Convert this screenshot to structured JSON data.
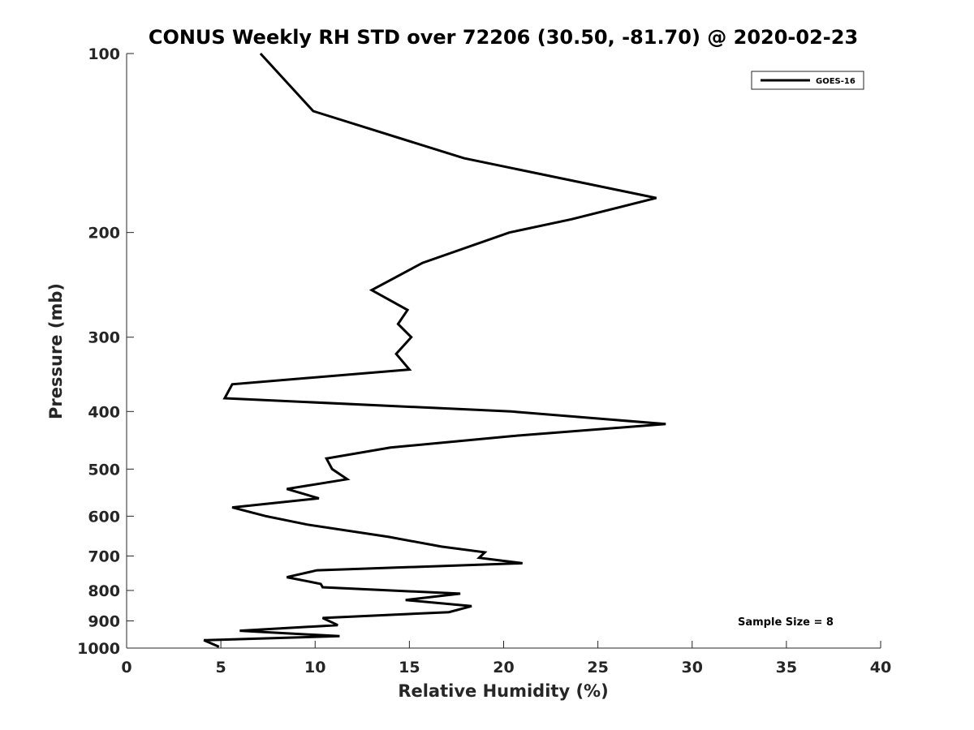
{
  "chart_data": {
    "type": "line",
    "title": "CONUS Weekly RH STD over 72206 (30.50, -81.70) @ 2020-02-23",
    "xlabel": "Relative Humidity (%)",
    "ylabel": "Pressure (mb)",
    "xlim": [
      0,
      40
    ],
    "ylim": [
      100,
      1000
    ],
    "y_scale": "log",
    "y_reversed": true,
    "x_ticks": [
      0,
      5,
      10,
      15,
      20,
      25,
      30,
      35,
      40
    ],
    "y_ticks": [
      100,
      200,
      300,
      400,
      500,
      600,
      700,
      800,
      900,
      1000
    ],
    "grid": false,
    "legend_position": "top-right",
    "series": [
      {
        "name": "GOES-16",
        "color": "#000000",
        "x": [
          7.1,
          9.9,
          17.9,
          28.1,
          23.6,
          20.3,
          15.7,
          13.0,
          14.9,
          14.4,
          15.1,
          14.3,
          15.0,
          5.6,
          5.2,
          20.4,
          28.6,
          20.4,
          14.0,
          10.6,
          10.9,
          11.7,
          8.5,
          10.2,
          5.6,
          7.4,
          9.6,
          13.9,
          16.7,
          19.0,
          18.7,
          21.0,
          10.1,
          8.5,
          10.3,
          10.4,
          17.7,
          14.8,
          18.3,
          17.1,
          10.4,
          11.2,
          6.0,
          11.3,
          4.1,
          4.9
        ],
        "y": [
          100,
          125,
          150,
          175,
          190,
          200,
          225,
          250,
          270,
          285,
          300,
          320,
          340,
          360,
          380,
          400,
          420,
          440,
          460,
          480,
          500,
          520,
          540,
          560,
          580,
          600,
          620,
          650,
          675,
          690,
          705,
          720,
          740,
          760,
          780,
          790,
          810,
          830,
          850,
          870,
          890,
          915,
          935,
          955,
          970,
          995
        ]
      }
    ],
    "annotations": [
      "Sample Size = 8"
    ]
  }
}
